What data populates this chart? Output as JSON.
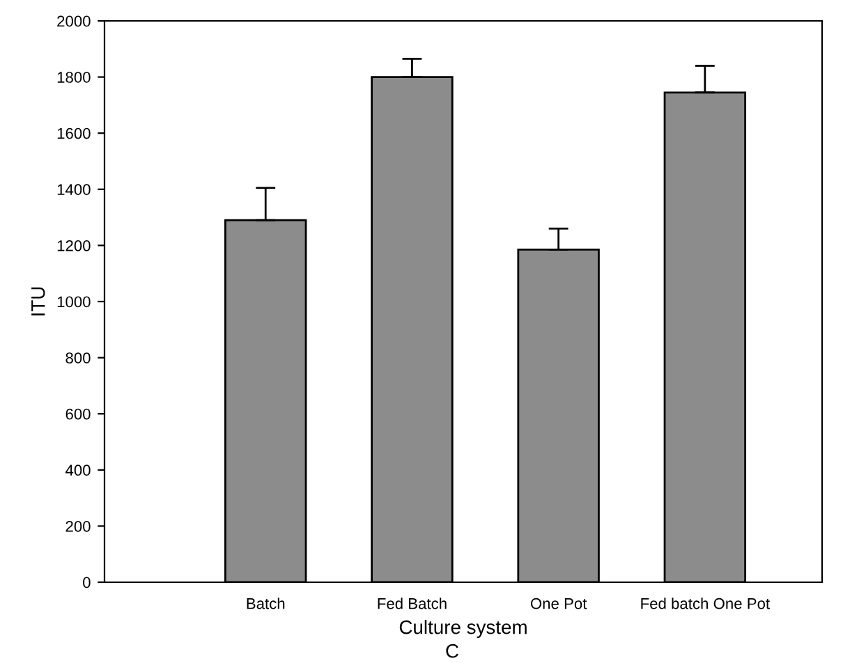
{
  "chart_data": {
    "type": "bar",
    "xlabel": "Culture system",
    "ylabel": "ITU",
    "categories": [
      "Batch",
      "Fed Batch",
      "One Pot",
      "Fed batch One Pot"
    ],
    "values": [
      1290,
      1800,
      1185,
      1745
    ],
    "errors": [
      [
        1290,
        1405
      ],
      [
        1800,
        1865
      ],
      [
        1185,
        1260
      ],
      [
        1745,
        1840
      ]
    ],
    "color": "#8c8c8c",
    "ylim": [
      0,
      2000
    ],
    "yticks": [
      0,
      200,
      400,
      600,
      800,
      1000,
      1200,
      1400,
      1600,
      1800,
      2000
    ],
    "grid": false,
    "legend": false,
    "annotations": [
      "C"
    ]
  }
}
